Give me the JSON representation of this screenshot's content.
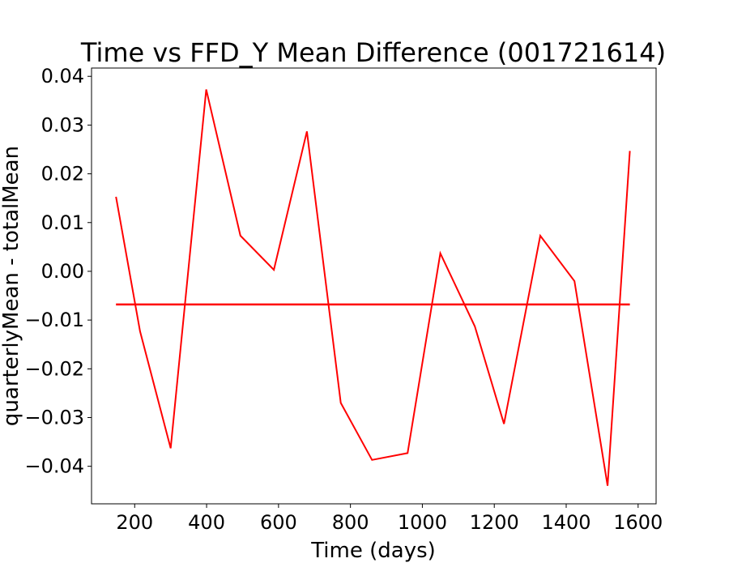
{
  "chart_data": {
    "type": "line",
    "title": "Time vs FFD_Y Mean Difference (001721614)",
    "xlabel": "Time (days)",
    "ylabel": "quarterlyMean - totalMean",
    "xlim": [
      80,
      1650
    ],
    "ylim": [
      -0.0477,
      0.0417
    ],
    "x_ticks": [
      200,
      400,
      600,
      800,
      1000,
      1200,
      1400,
      1600
    ],
    "x_tick_labels": [
      "200",
      "400",
      "600",
      "800",
      "1000",
      "1200",
      "1400",
      "1600"
    ],
    "y_ticks": [
      -0.04,
      -0.03,
      -0.02,
      -0.01,
      0.0,
      0.01,
      0.02,
      0.03,
      0.04
    ],
    "y_tick_labels": [
      "−0.04",
      "−0.03",
      "−0.02",
      "−0.01",
      "0.00",
      "0.01",
      "0.02",
      "0.03",
      "0.04"
    ],
    "grid": false,
    "line_color": "#ff0000",
    "series": [
      {
        "points": [
          [
            148,
            0.0153
          ],
          [
            215,
            -0.0123
          ],
          [
            300,
            -0.0363
          ],
          [
            399,
            0.0373
          ],
          [
            494,
            0.0073
          ],
          [
            587,
            0.0003
          ],
          [
            679,
            0.0287
          ],
          [
            773,
            -0.027
          ],
          [
            860,
            -0.0387
          ],
          [
            959,
            -0.0373
          ],
          [
            1050,
            0.0037
          ],
          [
            1146,
            -0.0113
          ],
          [
            1227,
            -0.0313
          ],
          [
            1328,
            0.0073
          ],
          [
            1423,
            -0.002
          ],
          [
            1515,
            -0.044
          ],
          [
            1577,
            0.0247
          ]
        ]
      },
      {
        "points": [
          [
            148,
            -0.0068
          ],
          [
            1577,
            -0.0068
          ]
        ]
      }
    ]
  }
}
